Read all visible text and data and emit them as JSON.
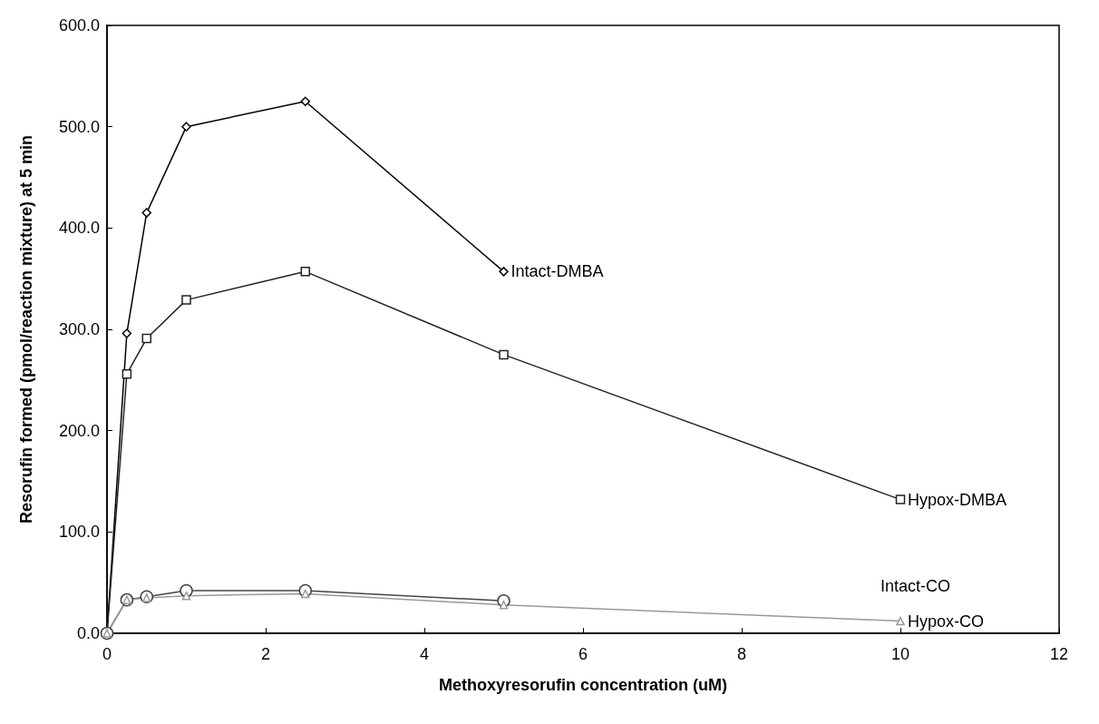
{
  "chart_data": {
    "type": "line",
    "xlabel": "Methoxyresorufin concentration (uM)",
    "ylabel": "Resorufin formed (pmol/reaction mixture) at 5 min",
    "xlim": [
      0,
      12
    ],
    "xticks": [
      0,
      2,
      4,
      6,
      8,
      10,
      12
    ],
    "ylim": [
      0,
      600
    ],
    "yticks": [
      {
        "value": 0,
        "label": "0.0"
      },
      {
        "value": 100,
        "label": "100.0"
      },
      {
        "value": 200,
        "label": "200.0"
      },
      {
        "value": 300,
        "label": "300.0"
      },
      {
        "value": 400,
        "label": "400.0"
      },
      {
        "value": 500,
        "label": "500.0"
      },
      {
        "value": 600,
        "label": "600.0"
      }
    ],
    "grid": false,
    "legend": false,
    "line_style": "solid",
    "series": [
      {
        "name": "Intact-DMBA",
        "color": "#000000",
        "marker": "diamond",
        "x": [
          0,
          0.25,
          0.5,
          1,
          2.5,
          5
        ],
        "values": [
          0,
          296,
          415,
          500,
          525,
          357
        ]
      },
      {
        "name": "Hypox-DMBA",
        "color": "#222222",
        "marker": "square",
        "x": [
          0,
          0.25,
          0.5,
          1,
          2.5,
          5,
          10
        ],
        "values": [
          0,
          256,
          291,
          329,
          357,
          275,
          132
        ]
      },
      {
        "name": "Intact-CO",
        "color": "#444444",
        "marker": "circle",
        "x": [
          0,
          0.25,
          0.5,
          1,
          2.5,
          5
        ],
        "values": [
          0,
          33,
          36,
          42,
          42,
          32
        ]
      },
      {
        "name": "Hypox-CO",
        "color": "#999999",
        "marker": "triangle",
        "x": [
          0,
          0.25,
          0.5,
          1,
          2.5,
          5,
          10
        ],
        "values": [
          0,
          33,
          35,
          37,
          39,
          28,
          12
        ]
      }
    ]
  }
}
